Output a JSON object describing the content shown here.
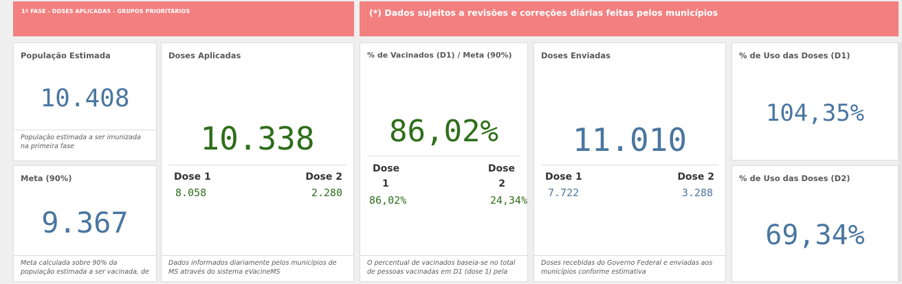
{
  "banner_left": "1ª FASE - DOSES APLICADAS - GRUPOS PRIORITÁRIOS",
  "banner_right": "(*) Dados sujeitos a revisões e correções diárias feitas pelos municípios",
  "populacao": {
    "title": "População Estimada",
    "value": "10.408",
    "foot": "População estimada a ser imunizada na primeira fase"
  },
  "meta": {
    "title": "Meta (90%)",
    "value": "9.367",
    "foot": "Meta calculada sobre 90% da população estimada a ser vacinada, de"
  },
  "doses_aplicadas": {
    "title": "Doses Aplicadas",
    "value": "10.338",
    "dose1_label": "Dose 1",
    "dose1_value": "8.058",
    "dose2_label": "Dose 2",
    "dose2_value": "2.280",
    "foot": "Dados informados diariamente pelos municípios de MS através do sistema eVacineMS"
  },
  "vacinados": {
    "title": "% de Vacinados (D1) / Meta (90%)",
    "value": "86,02%",
    "dose1_label_a": "Dose",
    "dose1_label_b": "1",
    "dose1_value": "86,02%",
    "dose2_label_a": "Dose",
    "dose2_label_b": "2",
    "dose2_value": "24,34%",
    "foot": "O percentual de vacinados baseia-se no total de pessoas vacinadas em D1 (dose 1) pela"
  },
  "doses_enviadas": {
    "title": "Doses Enviadas",
    "value": "11.010",
    "dose1_label": "Dose 1",
    "dose1_value": "7.722",
    "dose2_label": "Dose 2",
    "dose2_value": "3.288",
    "foot": "Doses recebidas do Governo Federal e enviadas aos municípios conforme estimativa"
  },
  "uso_d1": {
    "title": "% de Uso das Doses (D1)",
    "value": "104,35%"
  },
  "uso_d2": {
    "title": "% de Uso das Doses (D2)",
    "value": "69,34%"
  },
  "colors": {
    "banner": "#f28080",
    "kpi_blue": "#4a76a0",
    "kpi_green": "#2e6e1a"
  }
}
